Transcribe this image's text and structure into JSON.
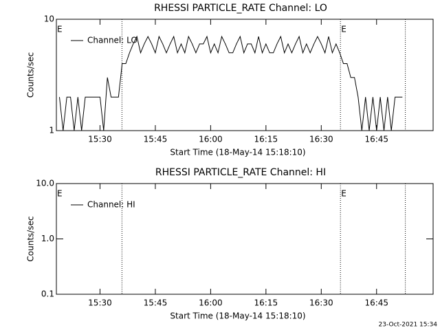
{
  "chart_data": [
    {
      "type": "line",
      "title": "RHESSI PARTICLE_RATE Channel: LO",
      "xlabel": "Start Time (18-May-14 15:18:10)",
      "ylabel": "Counts/sec",
      "x": [
        "15:19",
        "15:20",
        "15:21",
        "15:22",
        "15:23",
        "15:24",
        "15:25",
        "15:26",
        "15:27",
        "15:28",
        "15:29",
        "15:30",
        "15:31",
        "15:32",
        "15:33",
        "15:34",
        "15:35",
        "15:36",
        "15:37",
        "15:38",
        "15:39",
        "15:40",
        "15:41",
        "15:42",
        "15:43",
        "15:44",
        "15:45",
        "15:46",
        "15:47",
        "15:48",
        "15:49",
        "15:50",
        "15:51",
        "15:52",
        "15:53",
        "15:54",
        "15:55",
        "15:56",
        "15:57",
        "15:58",
        "15:59",
        "16:00",
        "16:01",
        "16:02",
        "16:03",
        "16:04",
        "16:05",
        "16:06",
        "16:07",
        "16:08",
        "16:09",
        "16:10",
        "16:11",
        "16:12",
        "16:13",
        "16:14",
        "16:15",
        "16:16",
        "16:17",
        "16:18",
        "16:19",
        "16:20",
        "16:21",
        "16:22",
        "16:23",
        "16:24",
        "16:25",
        "16:26",
        "16:27",
        "16:28",
        "16:29",
        "16:30",
        "16:31",
        "16:32",
        "16:33",
        "16:34",
        "16:35",
        "16:36",
        "16:37",
        "16:38",
        "16:39",
        "16:40",
        "16:41",
        "16:42",
        "16:43",
        "16:44",
        "16:45",
        "16:46",
        "16:47",
        "16:48",
        "16:49",
        "16:50",
        "16:51",
        "16:52"
      ],
      "series": [
        {
          "name": "Channel: LO",
          "color": "#000000",
          "values": [
            2,
            1,
            2,
            2,
            1,
            2,
            1,
            2,
            2,
            2,
            2,
            2,
            1,
            3,
            2,
            2,
            2,
            4,
            4,
            5,
            6,
            7,
            5,
            6,
            7,
            6,
            5,
            7,
            6,
            5,
            6,
            7,
            5,
            6,
            5,
            7,
            6,
            5,
            6,
            6,
            7,
            5,
            6,
            5,
            7,
            6,
            5,
            5,
            6,
            7,
            5,
            6,
            6,
            5,
            7,
            5,
            6,
            5,
            5,
            6,
            7,
            5,
            6,
            5,
            6,
            7,
            5,
            6,
            5,
            6,
            7,
            6,
            5,
            7,
            5,
            6,
            5,
            4,
            4,
            3,
            3,
            2,
            1,
            2,
            1,
            2,
            1,
            2,
            1,
            2,
            1,
            2,
            2,
            2
          ]
        }
      ],
      "xlim": [
        "15:18:10",
        "17:00:20"
      ],
      "xticks": [
        "15:30",
        "15:45",
        "16:00",
        "16:15",
        "16:30",
        "16:45"
      ],
      "ylim": [
        1,
        10
      ],
      "yticks": [
        1,
        10
      ],
      "log_y": true,
      "markers": [
        "15:35:57",
        "16:35:12",
        "16:52:48"
      ],
      "annotations": [
        {
          "x": "15:18:10",
          "text": "E"
        },
        {
          "x": "16:35:12",
          "text": "E"
        }
      ]
    },
    {
      "type": "line",
      "title": "RHESSI PARTICLE_RATE Channel: HI",
      "xlabel": "Start Time (18-May-14 15:18:10)",
      "ylabel": "Counts/sec",
      "x": [],
      "series": [
        {
          "name": "Channel: HI",
          "color": "#000000",
          "values": []
        }
      ],
      "xlim": [
        "15:18:10",
        "17:00:20"
      ],
      "xticks": [
        "15:30",
        "15:45",
        "16:00",
        "16:15",
        "16:30",
        "16:45"
      ],
      "ylim": [
        0.1,
        10
      ],
      "yticks": [
        0.1,
        {
          "value": 1,
          "label": "1.0"
        },
        {
          "value": 10,
          "label": "10.0"
        }
      ],
      "log_y": true,
      "markers": [
        "15:35:57",
        "16:35:12",
        "16:52:48"
      ],
      "annotations": [
        {
          "x": "15:18:10",
          "text": "E"
        },
        {
          "x": "16:35:12",
          "text": "E"
        }
      ]
    }
  ],
  "footer": "23-Oct-2021 15:34"
}
